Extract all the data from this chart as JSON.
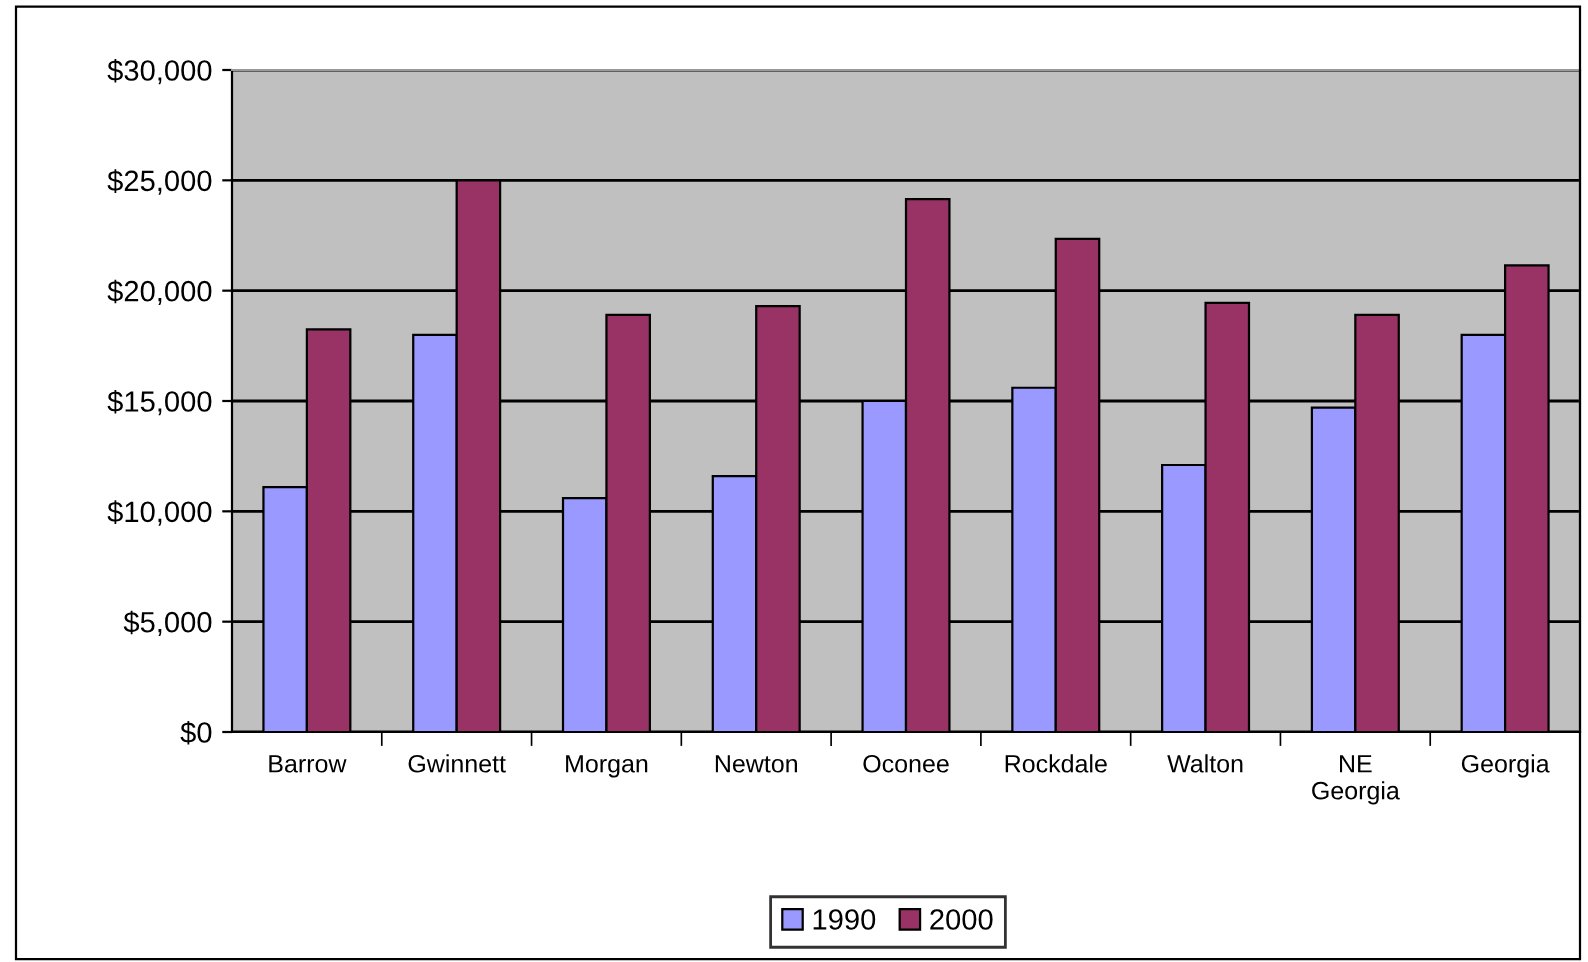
{
  "chart_data": {
    "type": "bar",
    "categories": [
      "Barrow",
      "Gwinnett",
      "Morgan",
      "Newton",
      "Oconee",
      "Rockdale",
      "Walton",
      "NE\nGeorgia",
      "Georgia"
    ],
    "series": [
      {
        "name": "1990",
        "color": "#9999ff",
        "values": [
          11100,
          18000,
          10600,
          11600,
          15000,
          15600,
          12100,
          14700,
          18000
        ]
      },
      {
        "name": "2000",
        "color": "#993366",
        "values": [
          18250,
          25000,
          18900,
          19300,
          24150,
          22350,
          19450,
          18900,
          21150
        ]
      }
    ],
    "ylim": [
      0,
      30000
    ],
    "yticks": [
      {
        "value": 0,
        "label": "$0"
      },
      {
        "value": 5000,
        "label": "$5,000"
      },
      {
        "value": 10000,
        "label": "$10,000"
      },
      {
        "value": 15000,
        "label": "$15,000"
      },
      {
        "value": 20000,
        "label": "$20,000"
      },
      {
        "value": 25000,
        "label": "$25,000"
      },
      {
        "value": 30000,
        "label": "$30,000"
      }
    ],
    "grid": "y",
    "legend": "bottom"
  }
}
